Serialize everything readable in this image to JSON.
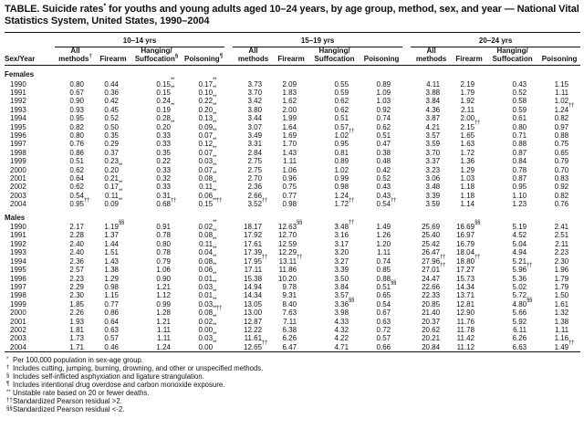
{
  "title": "TABLE. Suicide rates* for youths and young adults aged 10–24 years, by age group, method, sex, and year — National Vital Statistics System, United States, 1990–2004",
  "table": {
    "row_label_header": "Sex/Year",
    "groups": [
      {
        "label": "10–14 yrs",
        "columns": [
          "All\nmethods†",
          "Firearm",
          "Hanging/\nSuffocation§",
          "Poisoning¶"
        ]
      },
      {
        "label": "15–19 yrs",
        "columns": [
          "All\nmethods",
          "Firearm",
          "Hanging/\nSuffocation",
          "Poisoning"
        ]
      },
      {
        "label": "20–24 yrs",
        "columns": [
          "All\nmethods",
          "Firearm",
          "Hanging/\nSuffocation",
          "Poisoning"
        ]
      }
    ],
    "sections": [
      {
        "label": "Females",
        "rows": [
          {
            "year": "1990",
            "values": [
              "0.80",
              "0.44",
              "0.15**",
              "0.17**",
              "3.73",
              "2.09",
              "0.55",
              "0.89",
              "4.11",
              "2.19",
              "0.43",
              "1.15"
            ]
          },
          {
            "year": "1991",
            "values": [
              "0.67",
              "0.36",
              "0.15**",
              "0.10**",
              "3.70",
              "1.83",
              "0.59",
              "1.09",
              "3.88",
              "1.79",
              "0.52",
              "1.11"
            ]
          },
          {
            "year": "1992",
            "values": [
              "0.90",
              "0.42",
              "0.24",
              "0.22**",
              "3.42",
              "1.62",
              "0.62",
              "1.03",
              "3.84",
              "1.92",
              "0.58",
              "1.02"
            ]
          },
          {
            "year": "1993",
            "values": [
              "0.93",
              "0.45",
              "0.19**",
              "0.20**",
              "3.80",
              "2.00",
              "0.62",
              "0.92",
              "4.36",
              "2.11",
              "0.59",
              "1.24††"
            ]
          },
          {
            "year": "1994",
            "values": [
              "0.95",
              "0.52",
              "0.28",
              "0.13**",
              "3.44",
              "1.99",
              "0.51",
              "0.74",
              "3.87",
              "2.00",
              "0.61",
              "0.82"
            ]
          },
          {
            "year": "1995",
            "values": [
              "0.82",
              "0.50",
              "0.20**",
              "0.09**",
              "3.07",
              "1.64",
              "0.57",
              "0.62",
              "4.21",
              "2.15††",
              "0.80",
              "0.97"
            ]
          },
          {
            "year": "1996",
            "values": [
              "0.80",
              "0.35",
              "0.33",
              "0.07**",
              "3.49",
              "1.69",
              "1.02††",
              "0.51",
              "3.57",
              "1.65",
              "0.71",
              "0.88"
            ]
          },
          {
            "year": "1997",
            "values": [
              "0.76",
              "0.29",
              "0.33",
              "0.12**",
              "3.31",
              "1.70",
              "0.95",
              "0.47",
              "3.59",
              "1.63",
              "0.88",
              "0.75"
            ]
          },
          {
            "year": "1998",
            "values": [
              "0.86",
              "0.37",
              "0.35",
              "0.07**",
              "2.84",
              "1.43",
              "0.81",
              "0.38",
              "3.70",
              "1.72",
              "0.87",
              "0.65"
            ]
          },
          {
            "year": "1999",
            "values": [
              "0.51",
              "0.23",
              "0.22",
              "0.03**",
              "2.75",
              "1.11",
              "0.89",
              "0.48",
              "3.37",
              "1.36",
              "0.84",
              "0.79"
            ]
          },
          {
            "year": "2000",
            "values": [
              "0.62",
              "0.20**",
              "0.33",
              "0.07**",
              "2.75",
              "1.06",
              "1.02",
              "0.42",
              "3.23",
              "1.29",
              "0.78",
              "0.70"
            ]
          },
          {
            "year": "2001",
            "values": [
              "0.64",
              "0.21",
              "0.32",
              "0.08**",
              "2.70",
              "0.96",
              "0.99",
              "0.52",
              "3.06",
              "1.03",
              "0.87",
              "0.83"
            ]
          },
          {
            "year": "2002",
            "values": [
              "0.62",
              "0.17**",
              "0.33",
              "0.11**",
              "2.36",
              "0.75",
              "0.98",
              "0.43",
              "3.48",
              "1.18",
              "0.95",
              "0.92"
            ]
          },
          {
            "year": "2003",
            "values": [
              "0.54",
              "0.11**",
              "0.31",
              "0.06**",
              "2.66",
              "0.77",
              "1.24",
              "0.43",
              "3.39",
              "1.18",
              "1.10",
              "0.82"
            ]
          },
          {
            "year": "2004",
            "values": [
              "0.95††",
              "0.09**",
              "0.68††",
              "0.15**††",
              "3.52††",
              "0.98",
              "1.72††",
              "0.54††",
              "3.59",
              "1.14",
              "1.23",
              "0.76"
            ]
          }
        ]
      },
      {
        "label": "Males",
        "rows": [
          {
            "year": "1990",
            "values": [
              "2.17",
              "1.19§§",
              "0.91",
              "0.02**",
              "18.17",
              "12.63§§",
              "3.48††",
              "1.49",
              "25.69",
              "16.69§§",
              "5.19",
              "2.41"
            ]
          },
          {
            "year": "1991",
            "values": [
              "2.28",
              "1.37",
              "0.78",
              "0.08**",
              "17.92",
              "12.70",
              "3.16",
              "1.26",
              "25.40",
              "16.97",
              "4.52",
              "2.51"
            ]
          },
          {
            "year": "1992",
            "values": [
              "2.40",
              "1.44",
              "0.80",
              "0.11**",
              "17.61",
              "12.59",
              "3.17",
              "1.20",
              "25.42",
              "16.79",
              "5.04",
              "2.11"
            ]
          },
          {
            "year": "1993",
            "values": [
              "2.40",
              "1.51",
              "0.78",
              "0.04**",
              "17.39",
              "12.29",
              "3.20",
              "1.11",
              "26.47",
              "18.04",
              "4.94",
              "2.23"
            ]
          },
          {
            "year": "1994",
            "values": [
              "2.36",
              "1.43",
              "0.79",
              "0.08**",
              "17.95††",
              "13.11††",
              "3.27",
              "0.74",
              "27.96††",
              "18.80††",
              "5.21",
              "2.30"
            ]
          },
          {
            "year": "1995",
            "values": [
              "2.57",
              "1.38",
              "1.06",
              "0.06**",
              "17.11",
              "11.86",
              "3.39",
              "0.85",
              "27.01††",
              "17.27",
              "5.96††",
              "1.96"
            ]
          },
          {
            "year": "1996",
            "values": [
              "2.23",
              "1.29",
              "0.90",
              "0.01**",
              "15.38",
              "10.20",
              "3.50",
              "0.88",
              "24.47",
              "15.73",
              "5.36",
              "1.79"
            ]
          },
          {
            "year": "1997",
            "values": [
              "2.29",
              "0.98",
              "1.21",
              "0.03**",
              "14.94",
              "9.78",
              "3.84",
              "0.51§§",
              "22.66",
              "14.34",
              "5.02",
              "1.79"
            ]
          },
          {
            "year": "1998",
            "values": [
              "2.30",
              "1.15",
              "1.12",
              "0.01**",
              "14.34",
              "9.31",
              "3.57",
              "0.65",
              "22.33",
              "13.71",
              "5.72",
              "1.50"
            ]
          },
          {
            "year": "1999",
            "values": [
              "1.85",
              "0.77",
              "0.99",
              "0.03**",
              "13.05",
              "8.40",
              "3.36§§",
              "0.54",
              "20.85",
              "12.81",
              "4.80§§",
              "1.61"
            ]
          },
          {
            "year": "2000",
            "values": [
              "2.26",
              "0.86",
              "1.28",
              "0.08**††",
              "13.00",
              "7.63",
              "3.98",
              "0.67",
              "21.40",
              "12.90",
              "5.66",
              "1.32"
            ]
          },
          {
            "year": "2001",
            "values": [
              "1.93",
              "0.64",
              "1.21",
              "0.02**",
              "12.87",
              "7.11",
              "4.33",
              "0.63",
              "20.37",
              "11.76",
              "5.92",
              "1.38"
            ]
          },
          {
            "year": "2002",
            "values": [
              "1.81",
              "0.63",
              "1.11",
              "0.00**",
              "12.22",
              "6.38",
              "4.32",
              "0.72",
              "20.62",
              "11.78",
              "6.11",
              "1.11"
            ]
          },
          {
            "year": "2003",
            "values": [
              "1.73",
              "0.57",
              "1.11",
              "0.03**",
              "11.61",
              "6.26",
              "4.22",
              "0.57",
              "20.21",
              "11.42",
              "6.26",
              "1.16"
            ]
          },
          {
            "year": "2004",
            "values": [
              "1.71",
              "0.46",
              "1.24",
              "0.00**",
              "12.65††",
              "6.47",
              "4.71",
              "0.66",
              "20.84",
              "11.12",
              "6.63",
              "1.49††"
            ]
          }
        ]
      }
    ]
  },
  "footnotes": [
    {
      "sym": "*",
      "text": "Per 100,000 population in sex-age group."
    },
    {
      "sym": "†",
      "text": "Includes cutting, jumping, burning, drowning, and other or unspecified methods."
    },
    {
      "sym": "§",
      "text": "Includes self-inflicted asphyxiation and ligature strangulation."
    },
    {
      "sym": "¶",
      "text": "Includes intentional drug overdose and carbon monoxide exposure."
    },
    {
      "sym": "**",
      "text": "Unstable rate based on 20 or fewer deaths."
    },
    {
      "sym": "††",
      "text": "Standardized Pearson residual >2."
    },
    {
      "sym": "§§",
      "text": "Standardized Pearson residual <-2."
    }
  ]
}
